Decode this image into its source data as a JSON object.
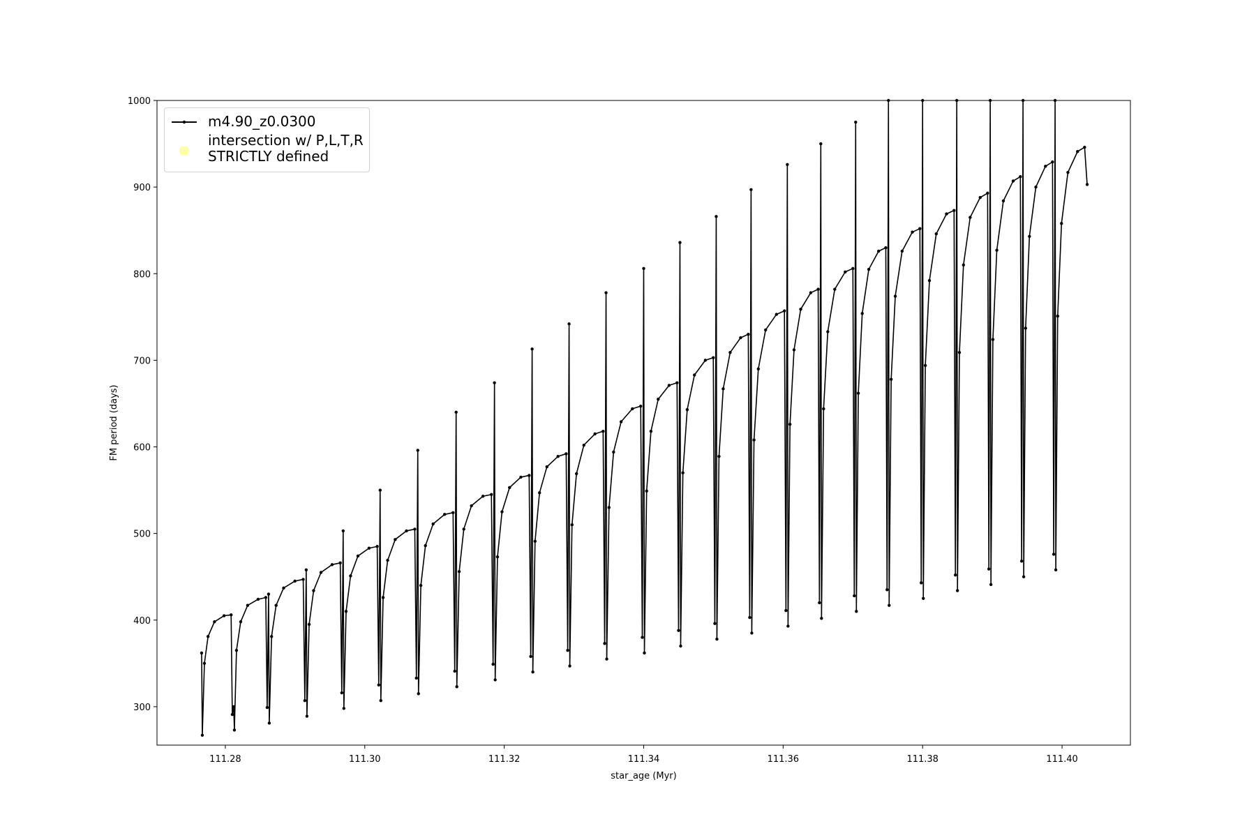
{
  "chart_data": {
    "type": "line",
    "xlabel": "star_age (Myr)",
    "ylabel": "FM period (days)",
    "xlim": [
      111.2702,
      111.4098
    ],
    "ylim": [
      255.6,
      1000
    ],
    "xticks": [
      111.28,
      {
        "value": 111.3,
        "label": "111.30"
      },
      111.32,
      111.34,
      111.36,
      111.38,
      {
        "value": 111.4,
        "label": "111.40"
      }
    ],
    "yticks": [
      300,
      400,
      500,
      600,
      700,
      800,
      900,
      1000
    ],
    "grid": false,
    "legend": "upper left",
    "series": [
      {
        "name": "m4.90_z0.0300",
        "color": "#000000",
        "x": [
          111.2766,
          111.2767,
          111.277,
          111.27752,
          111.27844,
          111.27982,
          111.28083,
          111.281,
          111.2812,
          111.2813,
          111.2816,
          111.2822,
          111.2832,
          111.2847,
          111.2858,
          111.286,
          111.2862,
          111.2863,
          111.28663,
          111.28728,
          111.28836,
          111.28998,
          111.29117,
          111.2914,
          111.2916,
          111.2917,
          111.29202,
          111.29266,
          111.29372,
          111.29531,
          111.29648,
          111.2967,
          111.2969,
          111.297,
          111.29732,
          111.29796,
          111.29902,
          111.30061,
          111.30178,
          111.302,
          111.3022,
          111.3023,
          111.30263,
          111.30328,
          111.30436,
          111.30598,
          111.30717,
          111.3074,
          111.3076,
          111.3077,
          111.30804,
          111.3087,
          111.3098,
          111.31145,
          111.31266,
          111.3129,
          111.3131,
          111.3132,
          111.31354,
          111.3142,
          111.3153,
          111.31695,
          111.31816,
          111.3184,
          111.3186,
          111.3187,
          111.31903,
          111.31968,
          111.32076,
          111.32238,
          111.32357,
          111.3238,
          111.324,
          111.3241,
          111.32442,
          111.32506,
          111.32612,
          111.32771,
          111.32888,
          111.3291,
          111.3293,
          111.3294,
          111.32972,
          111.33036,
          111.33142,
          111.33301,
          111.33418,
          111.3344,
          111.3346,
          111.3347,
          111.33503,
          111.33568,
          111.33676,
          111.33838,
          111.33957,
          111.3398,
          111.34,
          111.3401,
          111.34042,
          111.34104,
          111.34208,
          111.34364,
          111.34478,
          111.345,
          111.3452,
          111.3453,
          111.34562,
          111.34624,
          111.34728,
          111.34884,
          111.34998,
          111.3502,
          111.3504,
          111.3505,
          111.3508,
          111.3514,
          111.3524,
          111.3539,
          111.355,
          111.3552,
          111.3554,
          111.3555,
          111.35582,
          111.35644,
          111.35748,
          111.35904,
          111.36018,
          111.3604,
          111.3606,
          111.3607,
          111.36098,
          111.36156,
          111.36252,
          111.36396,
          111.36502,
          111.3652,
          111.3654,
          111.3655,
          111.3658,
          111.3664,
          111.3674,
          111.3689,
          111.37,
          111.3702,
          111.3704,
          111.3705,
          111.37078,
          111.37134,
          111.37228,
          111.37369,
          111.37472,
          111.3749,
          111.3751,
          111.3752,
          111.37549,
          111.37608,
          111.37706,
          111.37853,
          111.37961,
          111.3798,
          111.38,
          111.3801,
          111.38039,
          111.38098,
          111.38196,
          111.38343,
          111.38451,
          111.3847,
          111.3849,
          111.385,
          111.38528,
          111.38586,
          111.38682,
          111.38826,
          111.38932,
          111.3895,
          111.3897,
          111.3898,
          111.39008,
          111.39064,
          111.39158,
          111.39299,
          111.39402,
          111.3942,
          111.3944,
          111.3945,
          111.39477,
          111.39532,
          111.39624,
          111.39762,
          111.39863,
          111.3988,
          111.399,
          111.3991,
          111.39937,
          111.39992,
          111.40084,
          111.40222,
          111.40323,
          111.4036
        ],
        "values": [
          362,
          267,
          350,
          381,
          398,
          405,
          406,
          291,
          300,
          273,
          365,
          398,
          417,
          424,
          426,
          299,
          430,
          281,
          381,
          417,
          437,
          445,
          447,
          307,
          458,
          289,
          395,
          434,
          455,
          464,
          466,
          316,
          503,
          298,
          410,
          451,
          474,
          483,
          485,
          325,
          550,
          307,
          426,
          469,
          493,
          503,
          505,
          333,
          596,
          315,
          440,
          486,
          511,
          522,
          524,
          341,
          640,
          323,
          456,
          505,
          532,
          543,
          545,
          349,
          674,
          331,
          473,
          525,
          553,
          565,
          567,
          358,
          713,
          340,
          491,
          547,
          577,
          589,
          592,
          365,
          742,
          347,
          510,
          569,
          602,
          615,
          618,
          373,
          778,
          355,
          530,
          594,
          629,
          644,
          647,
          380,
          806,
          362,
          549,
          618,
          655,
          671,
          674,
          388,
          836,
          370,
          570,
          643,
          683,
          700,
          703,
          396,
          866,
          378,
          589,
          667,
          709,
          726,
          730,
          403,
          897,
          385,
          608,
          690,
          735,
          753,
          757,
          411,
          926,
          393,
          626,
          712,
          759,
          778,
          782,
          420,
          950,
          402,
          644,
          733,
          782,
          802,
          806,
          428,
          975,
          410,
          662,
          754,
          805,
          826,
          830,
          435,
          1000,
          417,
          678,
          774,
          826,
          848,
          852,
          443,
          1000,
          425,
          694,
          792,
          846,
          869,
          873,
          452,
          1000,
          434,
          709,
          810,
          865,
          888,
          893,
          459,
          1000,
          441,
          724,
          827,
          884,
          907,
          912,
          468,
          1000,
          450,
          737,
          843,
          900,
          924,
          929,
          476,
          1000,
          458,
          751,
          858,
          917,
          941,
          946,
          903
        ]
      },
      {
        "name": "intersection w/ P,L,T,R\nSTRICTLY defined",
        "color": "#ffffa8",
        "x": [],
        "values": []
      }
    ]
  }
}
